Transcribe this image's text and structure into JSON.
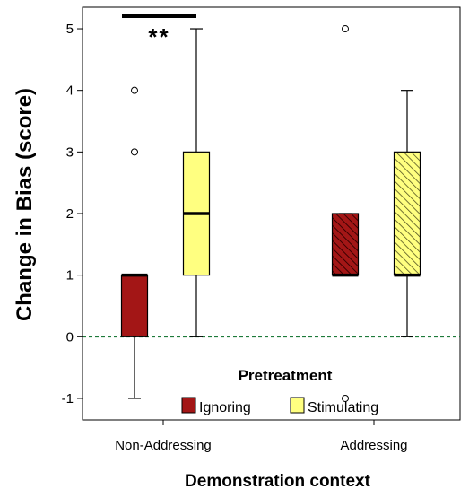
{
  "chart_data": {
    "type": "box",
    "xlabel": "Demonstration context",
    "ylabel": "Change in Bias (score)",
    "ylim": [
      -1.35,
      5.35
    ],
    "yticks": [
      -1,
      0,
      1,
      2,
      3,
      4,
      5
    ],
    "categories": [
      "Non-Addressing",
      "Addressing"
    ],
    "legend": {
      "title": "Pretreatment",
      "position": "bottom-right",
      "entries": [
        {
          "name": "Ignoring",
          "color": "#a31616"
        },
        {
          "name": "Stimulating",
          "color": "#ffff80"
        }
      ]
    },
    "reference_line": {
      "y": 0,
      "style": "dashed",
      "color": "#1e7a3a"
    },
    "series": [
      {
        "name": "Ignoring",
        "color": "#a31616",
        "boxes": [
          {
            "category": "Non-Addressing",
            "whisker_low": -1,
            "q1": 0,
            "median": 1,
            "q3": 1,
            "whisker_high": 1,
            "outliers": [
              3,
              4
            ],
            "hatched": false
          },
          {
            "category": "Addressing",
            "whisker_low": 1,
            "q1": 1,
            "median": 1,
            "q3": 2,
            "whisker_high": 2,
            "outliers": [
              5,
              -1
            ],
            "hatched": true
          }
        ]
      },
      {
        "name": "Stimulating",
        "color": "#ffff80",
        "boxes": [
          {
            "category": "Non-Addressing",
            "whisker_low": 0,
            "q1": 1,
            "median": 2,
            "q3": 3,
            "whisker_high": 5,
            "outliers": [],
            "hatched": false
          },
          {
            "category": "Addressing",
            "whisker_low": 0,
            "q1": 1,
            "median": 1,
            "q3": 3,
            "whisker_high": 4,
            "outliers": [],
            "hatched": true
          }
        ]
      }
    ],
    "annotations": [
      {
        "text": "**",
        "category": "Non-Addressing",
        "kind": "significance"
      }
    ]
  }
}
